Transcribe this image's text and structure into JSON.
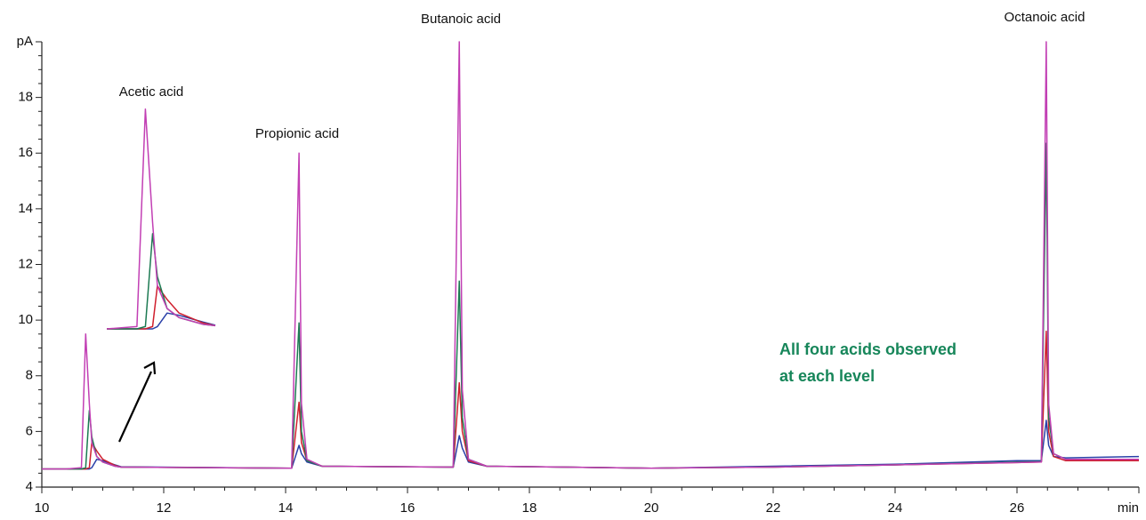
{
  "chart_data": {
    "type": "line",
    "x": [
      10.0,
      10.4,
      10.65,
      10.72,
      10.78,
      10.82,
      10.9,
      11.0,
      11.2,
      11.3,
      14.1,
      14.22,
      14.26,
      14.35,
      14.6,
      16.75,
      16.85,
      16.9,
      17.0,
      17.3,
      20.0,
      22.0,
      24.0,
      26.0,
      26.4,
      26.48,
      26.52,
      26.6,
      26.8,
      28.0
    ],
    "series": [
      {
        "color": "#c23fb4",
        "values": [
          4.65,
          4.65,
          4.7,
          9.5,
          7.0,
          5.6,
          5.1,
          4.9,
          4.75,
          4.72,
          4.68,
          16.0,
          7.0,
          5.0,
          4.75,
          4.72,
          20,
          7.5,
          5.0,
          4.75,
          4.68,
          4.72,
          4.8,
          4.88,
          4.9,
          20,
          7.0,
          5.2,
          5.0,
          5.0
        ]
      },
      {
        "color": "#1c7a52",
        "values": [
          4.65,
          4.65,
          4.65,
          4.7,
          6.75,
          5.8,
          5.1,
          4.9,
          4.75,
          4.72,
          4.68,
          9.9,
          6.0,
          4.95,
          4.75,
          4.72,
          11.4,
          6.5,
          5.0,
          4.75,
          4.68,
          4.72,
          4.8,
          4.9,
          4.92,
          16.35,
          6.5,
          5.2,
          5.0,
          5.0
        ]
      },
      {
        "color": "#d0202e",
        "values": [
          4.65,
          4.65,
          4.65,
          4.65,
          4.7,
          5.6,
          5.3,
          5.0,
          4.78,
          4.72,
          4.68,
          7.05,
          5.6,
          4.95,
          4.75,
          4.72,
          7.75,
          6.0,
          4.95,
          4.75,
          4.68,
          4.72,
          4.8,
          4.88,
          4.9,
          9.6,
          6.0,
          5.1,
          4.95,
          4.95
        ]
      },
      {
        "color": "#2a40a8",
        "values": [
          4.65,
          4.65,
          4.65,
          4.65,
          4.65,
          4.7,
          5.0,
          4.95,
          4.8,
          4.73,
          4.68,
          5.5,
          5.2,
          4.9,
          4.75,
          4.72,
          5.85,
          5.4,
          4.9,
          4.75,
          4.68,
          4.75,
          4.82,
          4.95,
          4.95,
          6.4,
          5.5,
          5.1,
          5.05,
          5.1
        ]
      }
    ],
    "xlim": [
      10,
      28
    ],
    "xticks": [
      10,
      12,
      14,
      16,
      18,
      20,
      22,
      24,
      26,
      {
        "value": 28,
        "label": "min"
      }
    ],
    "ylim": [
      4,
      20
    ],
    "yticks": [
      4,
      6,
      8,
      10,
      12,
      14,
      16,
      18,
      {
        "value": 20,
        "label": "pA"
      }
    ],
    "annotations": [
      "Acetic acid",
      "Propionic acid",
      "Butanoic acid",
      "Octanoic acid"
    ],
    "note": [
      "All four acids observed",
      "at each level"
    ]
  }
}
